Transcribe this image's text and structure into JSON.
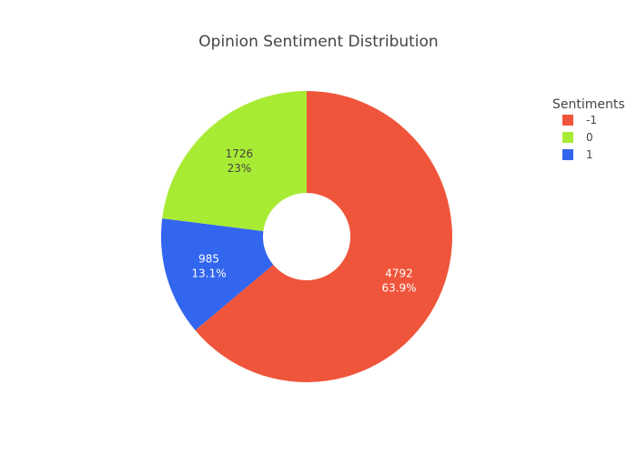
{
  "chart_data": {
    "type": "pie",
    "hole": true,
    "title": "Opinion Sentiment Distribution",
    "legend": {
      "title": "Sentiments",
      "placement": "top-right"
    },
    "slices": [
      {
        "label": "-1",
        "value": 4792,
        "value_label": "4792",
        "percent_label": "63.9%",
        "color": "#EF553B",
        "text_color": "#ffffff"
      },
      {
        "label": "1",
        "value": 985,
        "value_label": "985",
        "percent_label": "13.1%",
        "color": "#3366EE",
        "text_color": "#ffffff"
      },
      {
        "label": "0",
        "value": 1726,
        "value_label": "1726",
        "percent_label": "23%",
        "color": "#A8EB34",
        "text_color": "#444444"
      }
    ],
    "legend_order": [
      "-1",
      "0",
      "1"
    ]
  }
}
